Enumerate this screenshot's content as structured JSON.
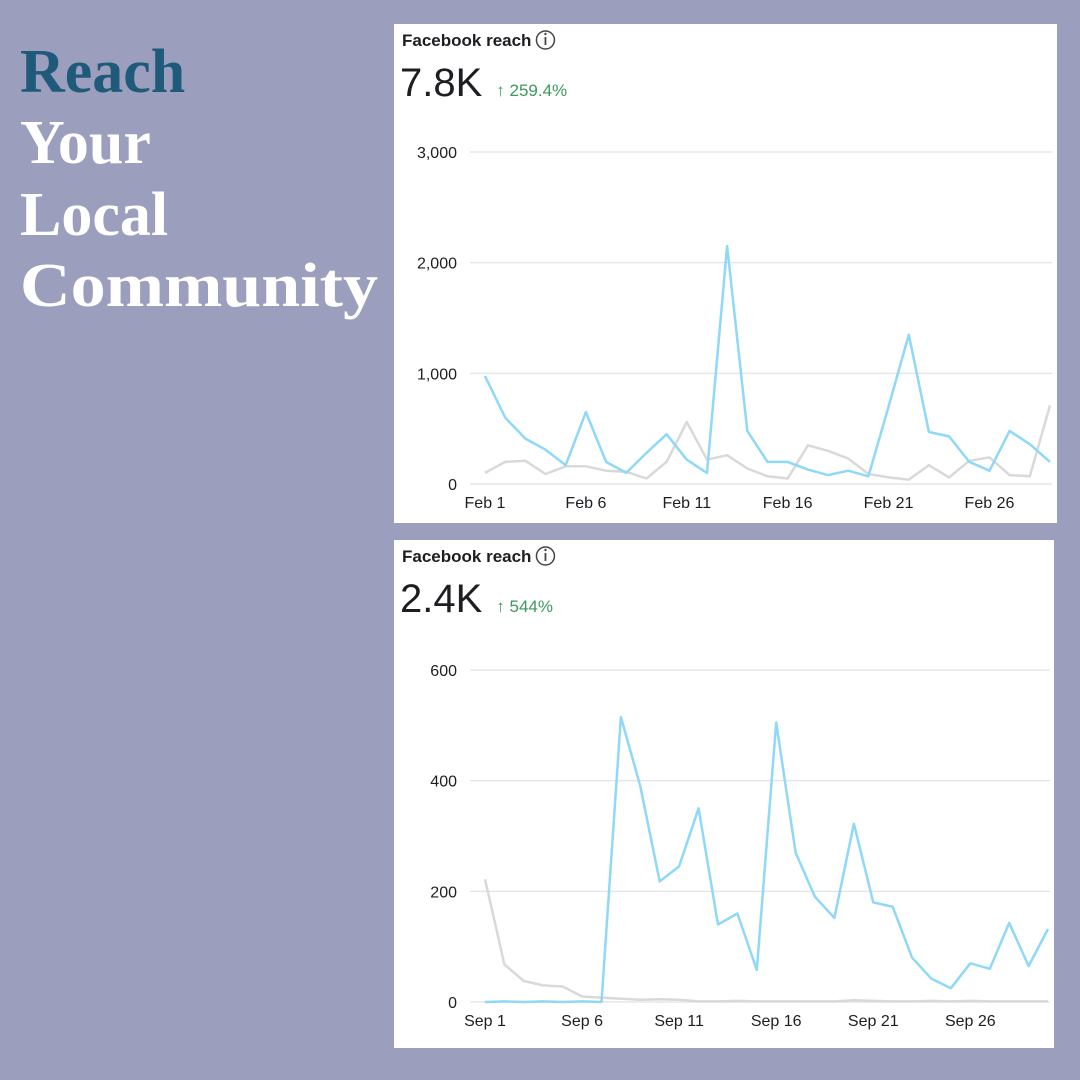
{
  "headline": [
    "Reach",
    "Your",
    "Local",
    "Community"
  ],
  "chart_data": [
    {
      "type": "line",
      "title": "Facebook reach",
      "total": "7.8K",
      "change": "↑ 259.4%",
      "categories": [
        "Feb 1",
        null,
        null,
        null,
        null,
        "Feb 6",
        null,
        null,
        null,
        null,
        "Feb 11",
        null,
        null,
        null,
        null,
        "Feb 16",
        null,
        null,
        null,
        null,
        "Feb 21",
        null,
        null,
        null,
        null,
        "Feb 26",
        null,
        null,
        null
      ],
      "series": [
        {
          "color": "#8fd8f8",
          "values": [
            975,
            600,
            410,
            310,
            170,
            650,
            200,
            100,
            280,
            450,
            220,
            100,
            2150,
            480,
            200,
            200,
            130,
            80,
            120,
            70,
            700,
            1350,
            470,
            430,
            200,
            120,
            480,
            360,
            200
          ]
        },
        {
          "color": "#d9d9d9",
          "values": [
            100,
            200,
            210,
            90,
            160,
            160,
            120,
            110,
            50,
            200,
            560,
            220,
            260,
            140,
            70,
            50,
            350,
            300,
            230,
            90,
            60,
            40,
            170,
            60,
            210,
            240,
            80,
            70,
            710
          ]
        }
      ],
      "ylim": [
        0,
        3000
      ],
      "yticks": [
        0,
        {
          "value": 1000,
          "label": "1,000"
        },
        {
          "value": 2000,
          "label": "2,000"
        },
        {
          "value": 3000,
          "label": "3,000"
        }
      ],
      "grid": true
    },
    {
      "type": "line",
      "title": "Facebook reach",
      "total": "2.4K",
      "change": "↑ 544%",
      "categories": [
        "Sep 1",
        null,
        null,
        null,
        null,
        "Sep 6",
        null,
        null,
        null,
        null,
        "Sep 11",
        null,
        null,
        null,
        null,
        "Sep 16",
        null,
        null,
        null,
        null,
        "Sep 21",
        null,
        null,
        null,
        null,
        "Sep 26",
        null,
        null,
        null,
        null
      ],
      "series": [
        {
          "color": "#8fd8f8",
          "values": [
            0,
            1,
            0,
            1,
            0,
            1,
            0,
            515,
            390,
            218,
            245,
            350,
            140,
            160,
            58,
            505,
            270,
            190,
            152,
            322,
            180,
            172,
            80,
            42,
            25,
            70,
            60,
            143,
            65,
            132
          ]
        },
        {
          "color": "#d9d9d9",
          "values": [
            222,
            68,
            38,
            30,
            28,
            10,
            8,
            6,
            4,
            5,
            4,
            1,
            1,
            2,
            1,
            1,
            1,
            1,
            1,
            3,
            2,
            1,
            1,
            2,
            1,
            2,
            1,
            1,
            1,
            1
          ]
        }
      ],
      "ylim": [
        0,
        600
      ],
      "yticks": [
        0,
        200,
        400,
        600
      ],
      "grid": true
    }
  ]
}
